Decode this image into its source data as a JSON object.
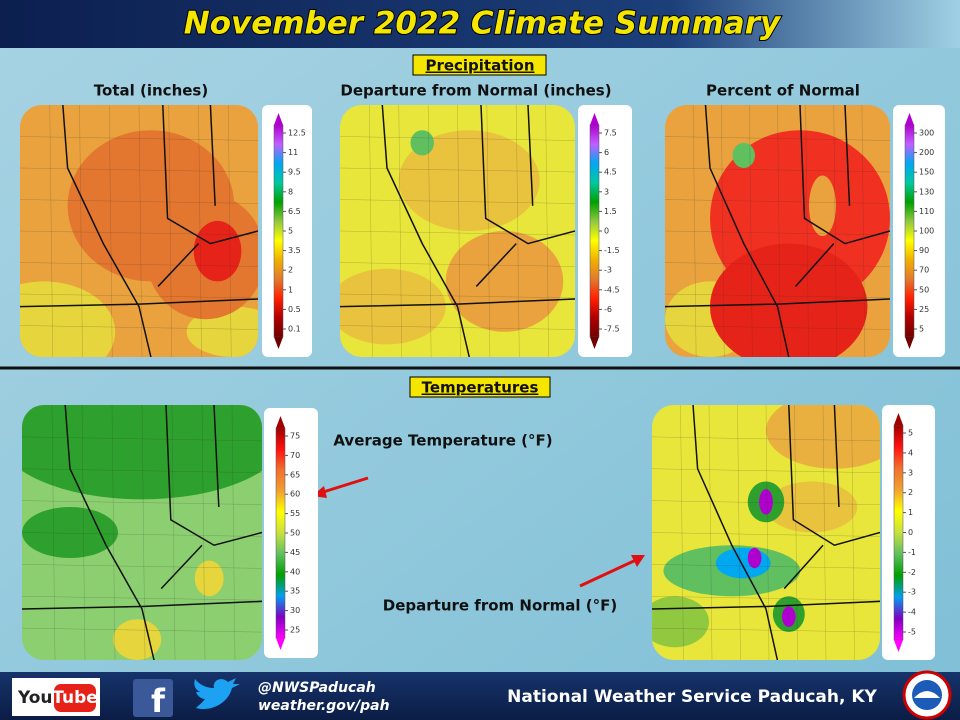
{
  "header": {
    "title": "November 2022 Climate Summary"
  },
  "precipitation": {
    "heading": "Precipitation",
    "maps": [
      {
        "title": "Total (inches)",
        "legend": [
          "12.5",
          "11",
          "9.5",
          "8",
          "6.5",
          "5",
          "3.5",
          "2",
          "1",
          "0.5",
          "0.1"
        ]
      },
      {
        "title": "Departure from Normal (inches)",
        "legend": [
          "7.5",
          "6",
          "4.5",
          "3",
          "1.5",
          "0",
          "-1.5",
          "-3",
          "-4.5",
          "-6",
          "-7.5"
        ]
      },
      {
        "title": "Percent of Normal",
        "legend": [
          "300",
          "200",
          "150",
          "130",
          "110",
          "100",
          "90",
          "70",
          "50",
          "25",
          "5"
        ]
      }
    ]
  },
  "temperatures": {
    "heading": "Temperatures",
    "maps": [
      {
        "title": "Average Temperature (°F)",
        "legend": [
          "75",
          "70",
          "65",
          "60",
          "55",
          "50",
          "45",
          "40",
          "35",
          "30",
          "25"
        ]
      },
      {
        "title": "Departure from Normal (°F)",
        "legend": [
          "5",
          "4",
          "3",
          "2",
          "1",
          "0",
          "-1",
          "-2",
          "-3",
          "-4",
          "-5"
        ]
      }
    ]
  },
  "footer": {
    "youtube": [
      "You",
      "Tube"
    ],
    "facebook": "f",
    "handle": "@NWSPaducah",
    "website": "weather.gov/pah",
    "office": "National Weather Service Paducah, KY"
  }
}
